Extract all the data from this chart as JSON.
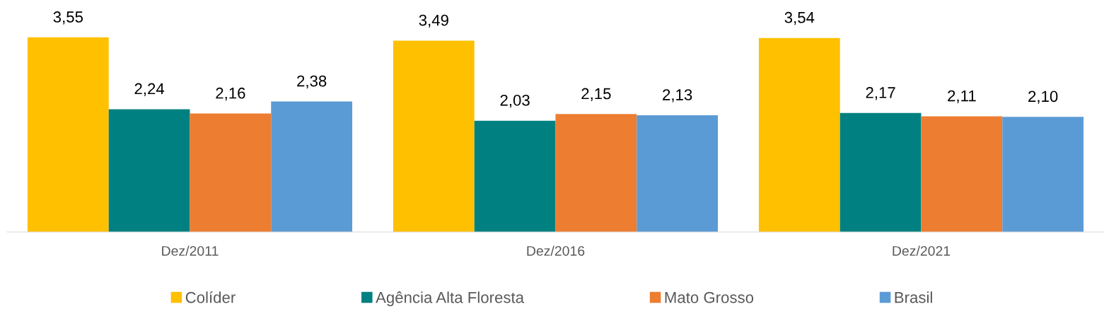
{
  "chart_data": {
    "type": "bar",
    "categories": [
      "Dez/2011",
      "Dez/2016",
      "Dez/2021"
    ],
    "series": [
      {
        "name": "Colíder",
        "color": "#ffc000",
        "values": [
          3.55,
          3.49,
          3.54
        ],
        "value_labels": [
          "3,55",
          "3,49",
          "3,54"
        ]
      },
      {
        "name": "Agência Alta Floresta",
        "color": "#008080",
        "values": [
          2.24,
          2.03,
          2.17
        ],
        "value_labels": [
          "2,24",
          "2,03",
          "2,17"
        ]
      },
      {
        "name": "Mato Grosso",
        "color": "#ed7d31",
        "values": [
          2.16,
          2.15,
          2.11
        ],
        "value_labels": [
          "2,16",
          "2,15",
          "2,11"
        ]
      },
      {
        "name": "Brasil",
        "color": "#5b9bd5",
        "values": [
          2.38,
          2.13,
          2.1
        ],
        "value_labels": [
          "2,38",
          "2,13",
          "2,10"
        ]
      }
    ],
    "tick_labels": "x",
    "grid": false,
    "legend": "bottom"
  }
}
